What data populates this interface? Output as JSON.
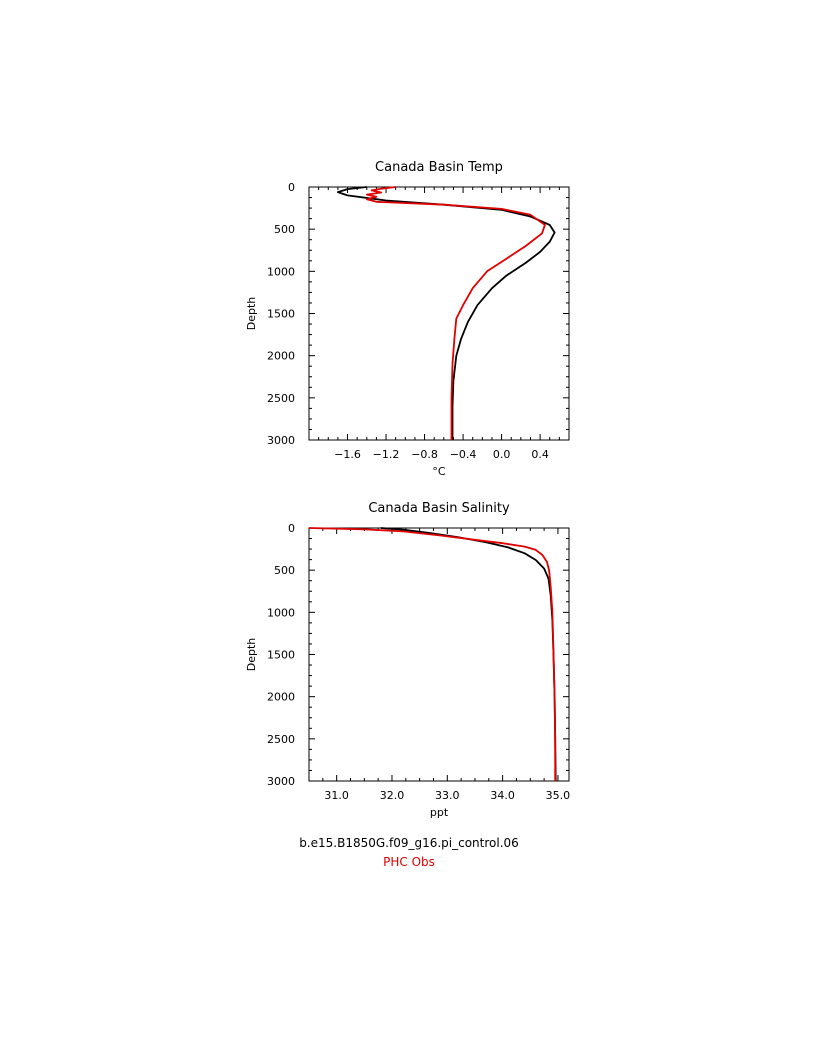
{
  "colors": {
    "model": "#000000",
    "obs": "#e00000"
  },
  "legend": {
    "model_label": "b.e15.B1850G.f09_g16.pi_control.06",
    "obs_label": "PHC Obs"
  },
  "chart_data": [
    {
      "type": "line",
      "orientation": "vertical-profile",
      "title": "Canada Basin Temp",
      "xlabel": "°C",
      "ylabel": "Depth",
      "xlim": [
        -2.0,
        0.7
      ],
      "ylim": [
        3000,
        0
      ],
      "xticks": [
        -1.6,
        -1.2,
        -0.8,
        -0.4,
        0.0,
        0.4
      ],
      "xtick_labels": [
        "−1.6",
        "−1.2",
        "−0.8",
        "−0.4",
        "0.0",
        "0.4"
      ],
      "yticks": [
        0,
        500,
        1000,
        1500,
        2000,
        2500,
        3000
      ],
      "ytick_labels": [
        "0",
        "500",
        "1000",
        "1500",
        "2000",
        "2500",
        "3000"
      ],
      "grid": false,
      "series": [
        {
          "name": "b.e15.B1850G.f09_g16.pi_control.06",
          "color_key": "model",
          "points": [
            [
              -1.4,
              0
            ],
            [
              -1.6,
              25
            ],
            [
              -1.7,
              60
            ],
            [
              -1.6,
              100
            ],
            [
              -1.2,
              160
            ],
            [
              -0.6,
              210
            ],
            [
              0.0,
              270
            ],
            [
              0.3,
              350
            ],
            [
              0.5,
              450
            ],
            [
              0.55,
              540
            ],
            [
              0.5,
              650
            ],
            [
              0.4,
              770
            ],
            [
              0.25,
              900
            ],
            [
              0.05,
              1050
            ],
            [
              -0.1,
              1200
            ],
            [
              -0.25,
              1400
            ],
            [
              -0.35,
              1600
            ],
            [
              -0.42,
              1800
            ],
            [
              -0.47,
              2000
            ],
            [
              -0.5,
              2300
            ],
            [
              -0.51,
              2600
            ],
            [
              -0.51,
              3000
            ]
          ]
        },
        {
          "name": "PHC Obs",
          "color_key": "obs",
          "points": [
            [
              -1.1,
              0
            ],
            [
              -1.25,
              20
            ],
            [
              -1.35,
              40
            ],
            [
              -1.25,
              65
            ],
            [
              -1.4,
              90
            ],
            [
              -1.3,
              115
            ],
            [
              -1.4,
              145
            ],
            [
              -1.3,
              175
            ],
            [
              -0.6,
              210
            ],
            [
              0.0,
              260
            ],
            [
              0.3,
              330
            ],
            [
              0.45,
              450
            ],
            [
              0.42,
              550
            ],
            [
              0.25,
              700
            ],
            [
              0.05,
              850
            ],
            [
              -0.15,
              1000
            ],
            [
              -0.3,
              1200
            ],
            [
              -0.4,
              1400
            ],
            [
              -0.47,
              1560
            ],
            [
              -0.49,
              1800
            ],
            [
              -0.51,
              2100
            ],
            [
              -0.52,
              2500
            ],
            [
              -0.52,
              3000
            ]
          ]
        }
      ]
    },
    {
      "type": "line",
      "orientation": "vertical-profile",
      "title": "Canada Basin Salinity",
      "xlabel": "ppt",
      "ylabel": "Depth",
      "xlim": [
        30.5,
        35.2
      ],
      "ylim": [
        3000,
        0
      ],
      "xticks": [
        31.0,
        32.0,
        33.0,
        34.0,
        35.0
      ],
      "xtick_labels": [
        "31.0",
        "32.0",
        "33.0",
        "34.0",
        "35.0"
      ],
      "yticks": [
        0,
        500,
        1000,
        1500,
        2000,
        2500,
        3000
      ],
      "ytick_labels": [
        "0",
        "500",
        "1000",
        "1500",
        "2000",
        "2500",
        "3000"
      ],
      "grid": false,
      "series": [
        {
          "name": "b.e15.B1850G.f09_g16.pi_control.06",
          "color_key": "model",
          "points": [
            [
              31.8,
              0
            ],
            [
              32.2,
              20
            ],
            [
              32.7,
              60
            ],
            [
              33.2,
              110
            ],
            [
              33.7,
              170
            ],
            [
              34.1,
              230
            ],
            [
              34.4,
              300
            ],
            [
              34.6,
              380
            ],
            [
              34.75,
              480
            ],
            [
              34.83,
              600
            ],
            [
              34.87,
              800
            ],
            [
              34.9,
              1100
            ],
            [
              34.92,
              1500
            ],
            [
              34.94,
              2000
            ],
            [
              34.95,
              2500
            ],
            [
              34.96,
              3000
            ]
          ]
        },
        {
          "name": "PHC Obs",
          "color_key": "obs",
          "points": [
            [
              30.5,
              0
            ],
            [
              31.5,
              15
            ],
            [
              32.2,
              40
            ],
            [
              32.9,
              90
            ],
            [
              33.5,
              140
            ],
            [
              34.0,
              180
            ],
            [
              34.4,
              220
            ],
            [
              34.6,
              260
            ],
            [
              34.72,
              320
            ],
            [
              34.8,
              400
            ],
            [
              34.84,
              500
            ],
            [
              34.87,
              700
            ],
            [
              34.9,
              1000
            ],
            [
              34.92,
              1500
            ],
            [
              34.94,
              2000
            ],
            [
              34.95,
              2500
            ],
            [
              34.95,
              3000
            ]
          ]
        }
      ]
    }
  ]
}
